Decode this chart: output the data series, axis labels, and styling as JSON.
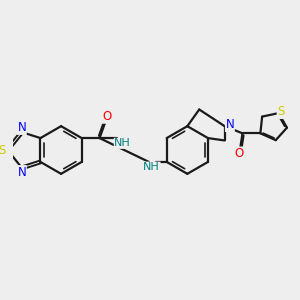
{
  "background_color": "#eeeeee",
  "bond_color": "#1a1a1a",
  "atom_colors": {
    "N": "#0000ff",
    "O": "#ff0000",
    "S": "#cccc00",
    "NH": "#008080",
    "C": "#1a1a1a"
  },
  "bond_lw": 1.6,
  "font_size": 8.5
}
